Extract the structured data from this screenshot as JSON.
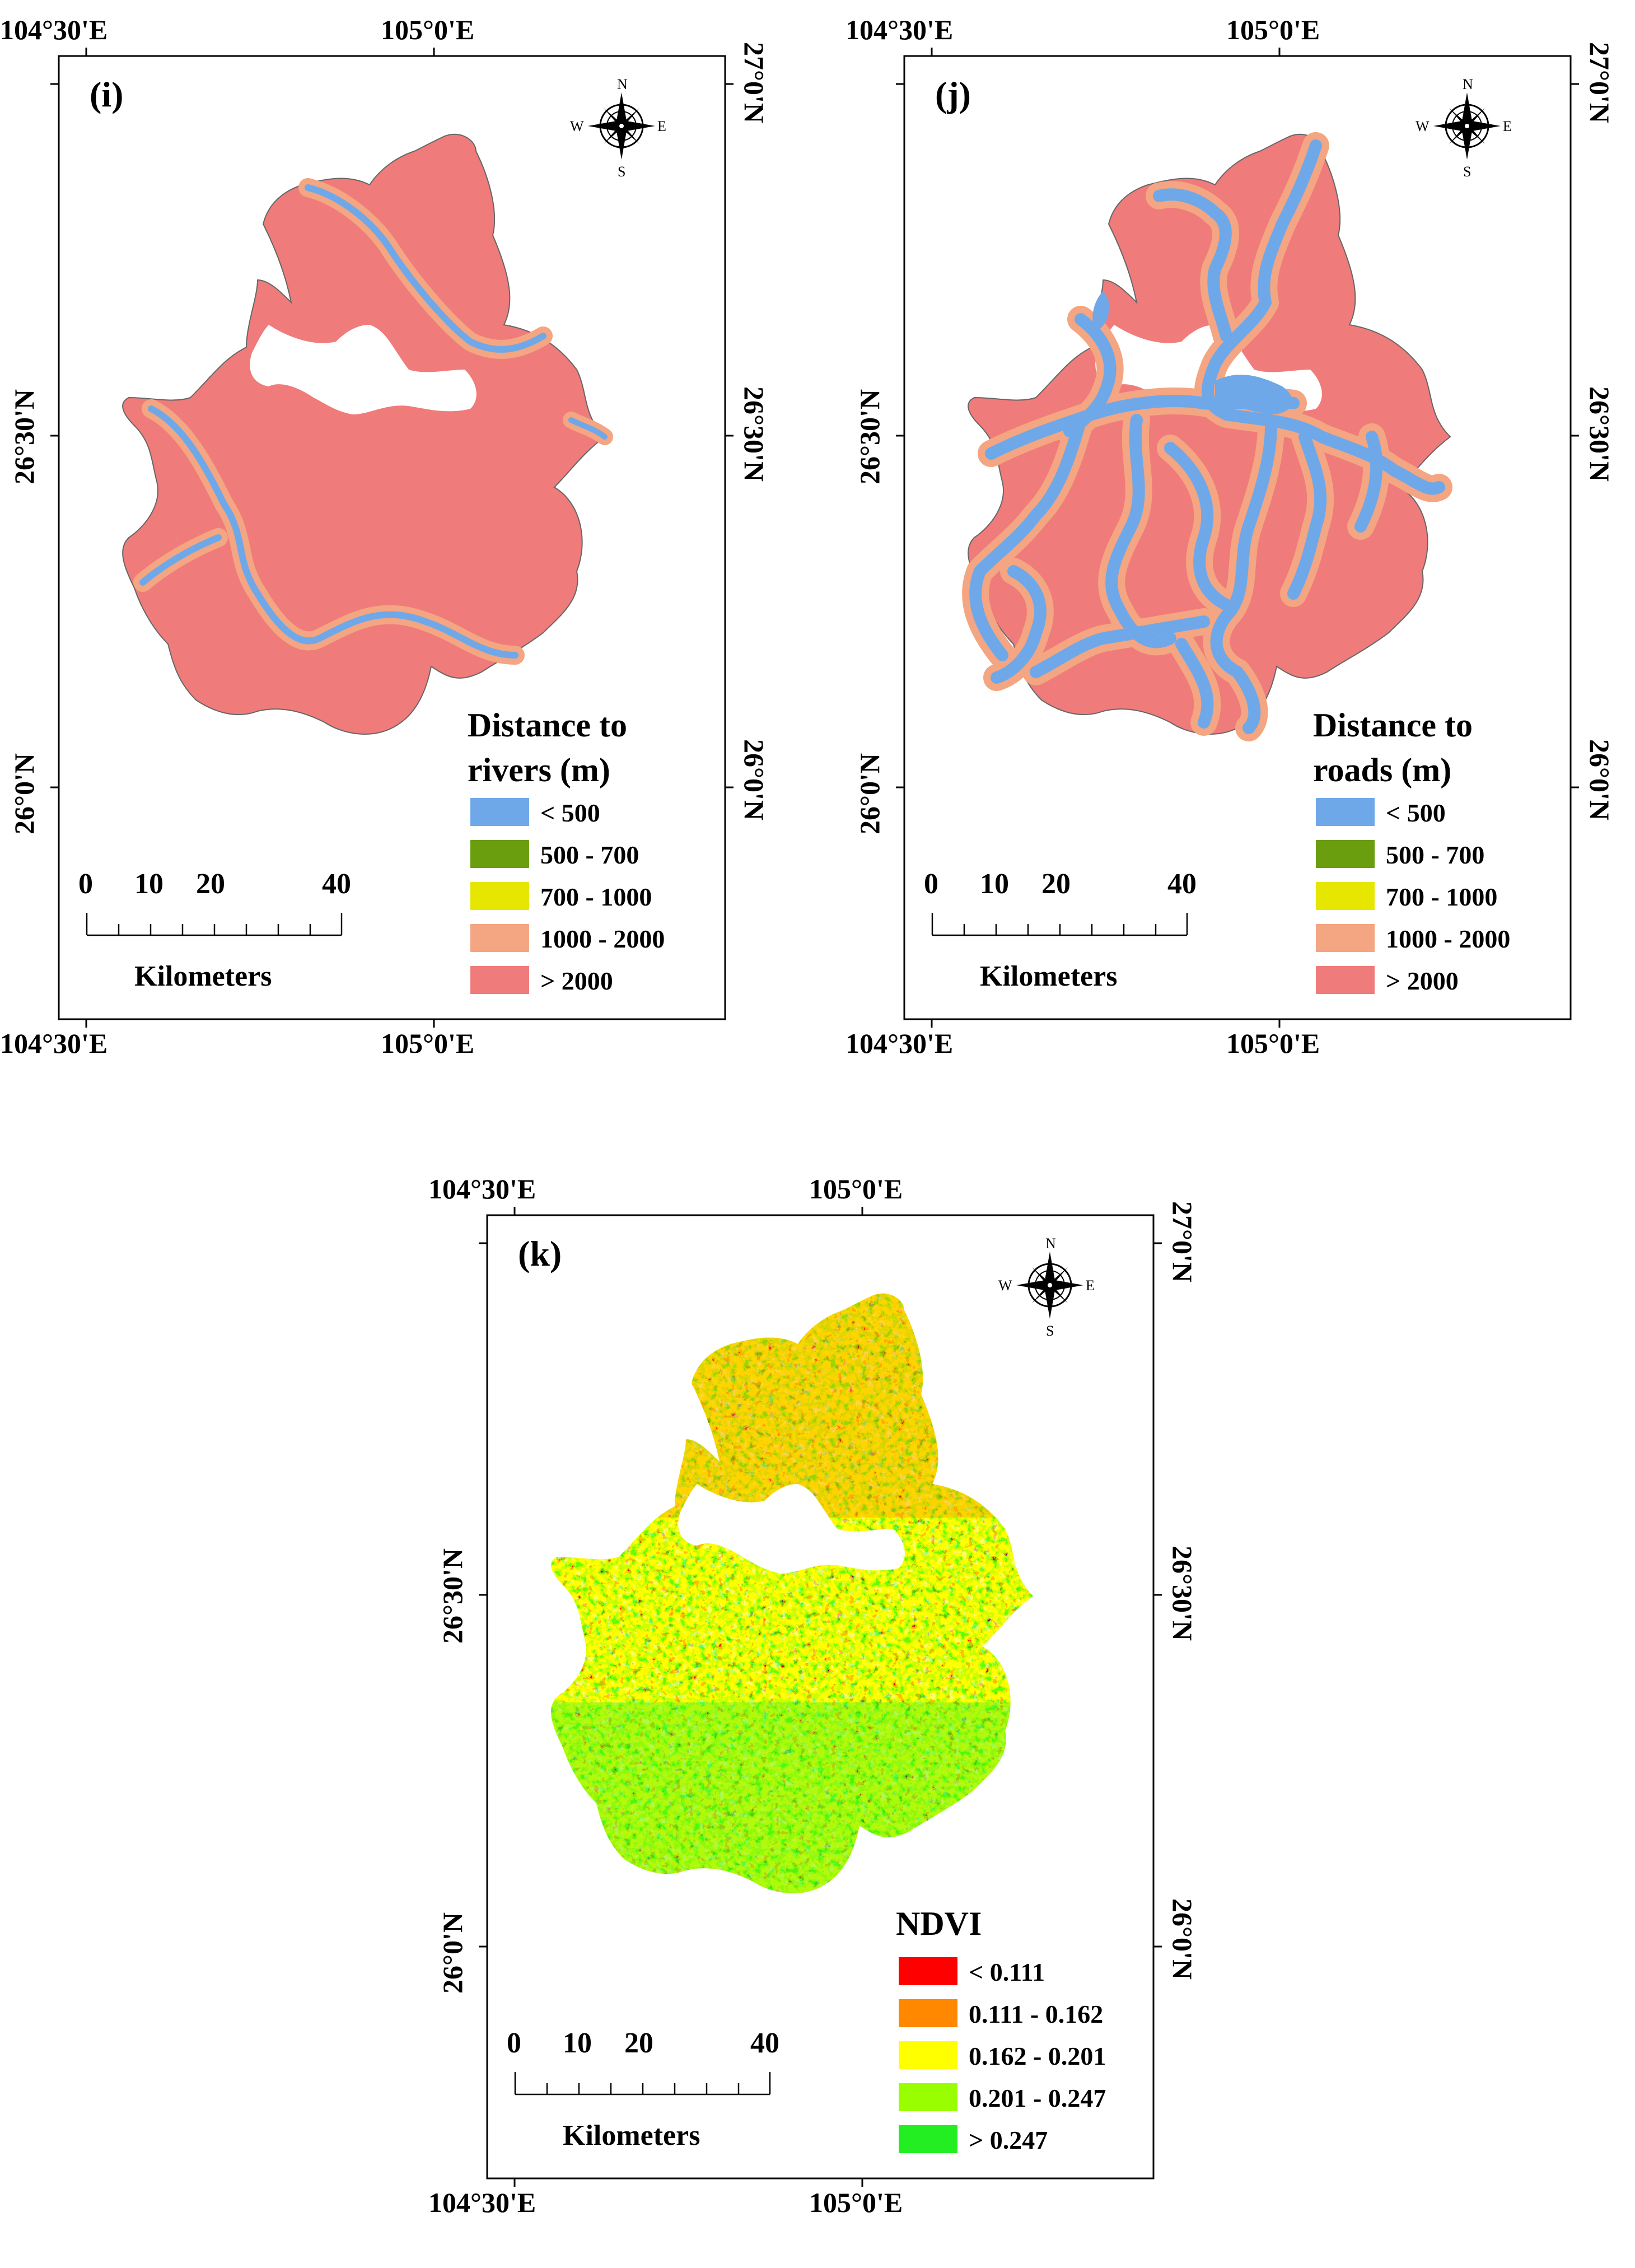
{
  "colors": {
    "rivers_roads": [
      "#6FA8E8",
      "#6A9E0E",
      "#E6E600",
      "#F4A582",
      "#F07B7B"
    ],
    "ndvi": [
      "#FF0000",
      "#FF8800",
      "#FFFF00",
      "#99FF00",
      "#22EE22"
    ],
    "outline": "#444444"
  },
  "coordinates": {
    "lon_left": "104°30'E",
    "lon_right": "105°0'E",
    "lat_top": "27°0'N",
    "lat_mid": "26°30'N",
    "lat_bottom": "26°0'N"
  },
  "compass": {
    "n": "N",
    "s": "S",
    "e": "E",
    "w": "W"
  },
  "scale_bar": {
    "ticks": [
      "0",
      "10",
      "20",
      "40"
    ],
    "unit": "Kilometers"
  },
  "panels": [
    {
      "id": "i",
      "label": "(i)",
      "legend_title_1": "Distance to",
      "legend_title_2": "rivers (m)",
      "classes": [
        "< 500",
        "500 - 700",
        "700 - 1000",
        "1000 - 2000",
        "> 2000"
      ]
    },
    {
      "id": "j",
      "label": "(j)",
      "legend_title_1": "Distance to",
      "legend_title_2": "roads (m)",
      "classes": [
        "< 500",
        "500 - 700",
        "700 - 1000",
        "1000 - 2000",
        "> 2000"
      ]
    },
    {
      "id": "k",
      "label": "(k)",
      "legend_title_1": "NDVI",
      "legend_title_2": "",
      "classes": [
        "< 0.111",
        "0.111 - 0.162",
        "0.162 - 0.201",
        "0.201 - 0.247",
        "> 0.247"
      ]
    }
  ]
}
